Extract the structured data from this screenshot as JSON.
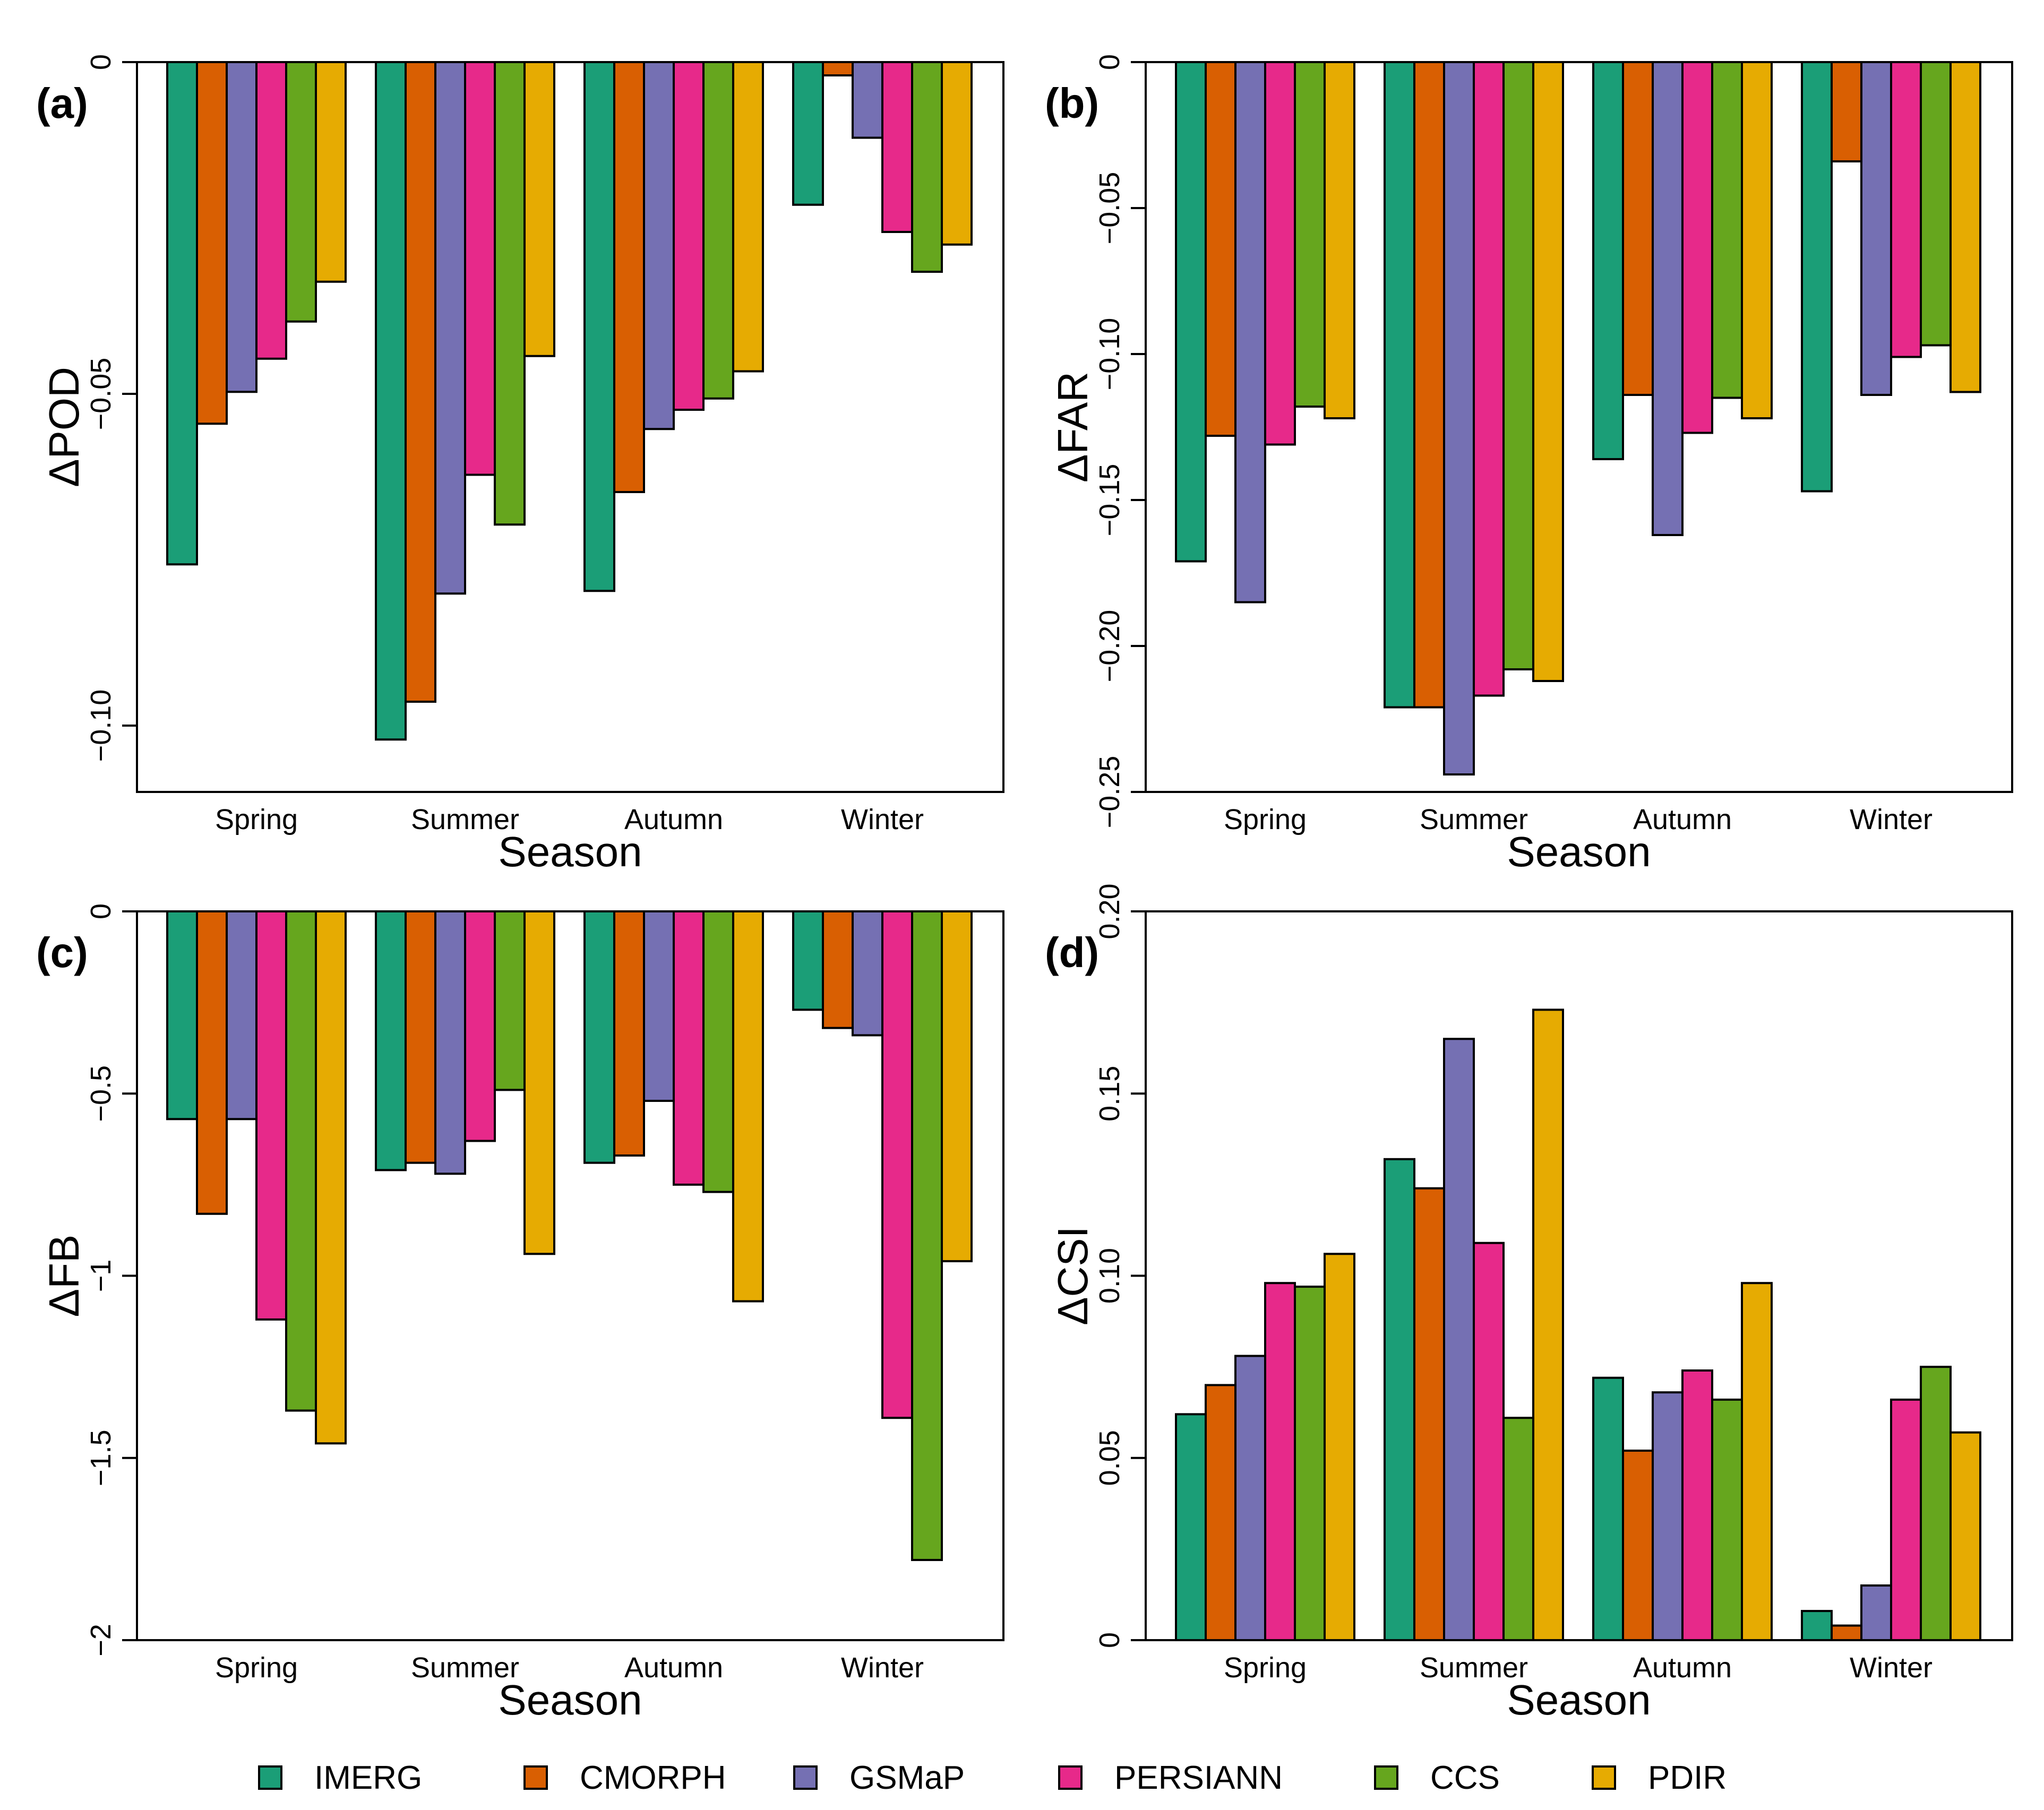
{
  "series_colors": {
    "IMERG": "#1b9e77",
    "CMORPH": "#d95f02",
    "GSMaP": "#7570b3",
    "PERSIANN": "#e7298a",
    "CCS": "#66a61e",
    "PDIR": "#e6ab02"
  },
  "legend": [
    "IMERG",
    "CMORPH",
    "GSMaP",
    "PERSIANN",
    "CCS",
    "PDIR"
  ],
  "chart_data": [
    {
      "type": "bar",
      "panel_label": "(a)",
      "ylabel": "ΔPOD",
      "xlabel": "Season",
      "categories": [
        "Spring",
        "Summer",
        "Autumn",
        "Winter"
      ],
      "ylim": [
        -0.11,
        0
      ],
      "yticks": [
        0,
        -0.05,
        -0.1
      ],
      "ytick_labels": [
        "0",
        "−0.05",
        "−0.10"
      ],
      "series": [
        {
          "name": "IMERG",
          "values": [
            -0.0757,
            -0.1021,
            -0.0797,
            -0.0215
          ]
        },
        {
          "name": "CMORPH",
          "values": [
            -0.0545,
            -0.0964,
            -0.0648,
            -0.002
          ]
        },
        {
          "name": "GSMaP",
          "values": [
            -0.0497,
            -0.0801,
            -0.0553,
            -0.0114
          ]
        },
        {
          "name": "PERSIANN",
          "values": [
            -0.0447,
            -0.0622,
            -0.0524,
            -0.0256
          ]
        },
        {
          "name": "CCS",
          "values": [
            -0.0391,
            -0.0697,
            -0.0507,
            -0.0316
          ]
        },
        {
          "name": "PDIR",
          "values": [
            -0.0331,
            -0.0443,
            -0.0466,
            -0.0275
          ]
        }
      ]
    },
    {
      "type": "bar",
      "panel_label": "(b)",
      "ylabel": "ΔFAR",
      "xlabel": "Season",
      "categories": [
        "Spring",
        "Summer",
        "Autumn",
        "Winter"
      ],
      "ylim": [
        -0.25,
        0
      ],
      "yticks": [
        0,
        -0.05,
        -0.1,
        -0.15,
        -0.2,
        -0.25
      ],
      "ytick_labels": [
        "0",
        "−0.05",
        "−0.10",
        "−0.15",
        "−0.20",
        "−0.25"
      ],
      "series": [
        {
          "name": "IMERG",
          "values": [
            -0.171,
            -0.221,
            -0.136,
            -0.147
          ]
        },
        {
          "name": "CMORPH",
          "values": [
            -0.128,
            -0.221,
            -0.114,
            -0.034
          ]
        },
        {
          "name": "GSMaP",
          "values": [
            -0.185,
            -0.244,
            -0.162,
            -0.114
          ]
        },
        {
          "name": "PERSIANN",
          "values": [
            -0.131,
            -0.217,
            -0.127,
            -0.101
          ]
        },
        {
          "name": "CCS",
          "values": [
            -0.118,
            -0.208,
            -0.115,
            -0.097
          ]
        },
        {
          "name": "PDIR",
          "values": [
            -0.122,
            -0.212,
            -0.122,
            -0.113
          ]
        }
      ]
    },
    {
      "type": "bar",
      "panel_label": "(c)",
      "ylabel": "ΔFB",
      "xlabel": "Season",
      "categories": [
        "Spring",
        "Summer",
        "Autumn",
        "Winter"
      ],
      "ylim": [
        -2,
        0
      ],
      "yticks": [
        0,
        -0.5,
        -1,
        -1.5,
        -2
      ],
      "ytick_labels": [
        "0",
        "−0.5",
        "−1",
        "−1.5",
        "−2"
      ],
      "series": [
        {
          "name": "IMERG",
          "values": [
            -0.57,
            -0.71,
            -0.69,
            -0.27
          ]
        },
        {
          "name": "CMORPH",
          "values": [
            -0.83,
            -0.69,
            -0.67,
            -0.32
          ]
        },
        {
          "name": "GSMaP",
          "values": [
            -0.57,
            -0.72,
            -0.52,
            -0.34
          ]
        },
        {
          "name": "PERSIANN",
          "values": [
            -1.12,
            -0.63,
            -0.75,
            -1.39
          ]
        },
        {
          "name": "CCS",
          "values": [
            -1.37,
            -0.49,
            -0.77,
            -1.78
          ]
        },
        {
          "name": "PDIR",
          "values": [
            -1.46,
            -0.94,
            -1.07,
            -0.96
          ]
        }
      ]
    },
    {
      "type": "bar",
      "panel_label": "(d)",
      "ylabel": "ΔCSI",
      "xlabel": "Season",
      "categories": [
        "Spring",
        "Summer",
        "Autumn",
        "Winter"
      ],
      "ylim": [
        0,
        0.2
      ],
      "yticks": [
        0,
        0.05,
        0.1,
        0.15,
        0.2
      ],
      "ytick_labels": [
        "0",
        "0.05",
        "0.10",
        "0.15",
        "0.20"
      ],
      "series": [
        {
          "name": "IMERG",
          "values": [
            0.062,
            0.132,
            0.072,
            0.008
          ]
        },
        {
          "name": "CMORPH",
          "values": [
            0.07,
            0.124,
            0.052,
            0.004
          ]
        },
        {
          "name": "GSMaP",
          "values": [
            0.078,
            0.165,
            0.068,
            0.015
          ]
        },
        {
          "name": "PERSIANN",
          "values": [
            0.098,
            0.109,
            0.074,
            0.066
          ]
        },
        {
          "name": "CCS",
          "values": [
            0.097,
            0.061,
            0.066,
            0.075
          ]
        },
        {
          "name": "PDIR",
          "values": [
            0.106,
            0.173,
            0.098,
            0.057
          ]
        }
      ]
    }
  ]
}
